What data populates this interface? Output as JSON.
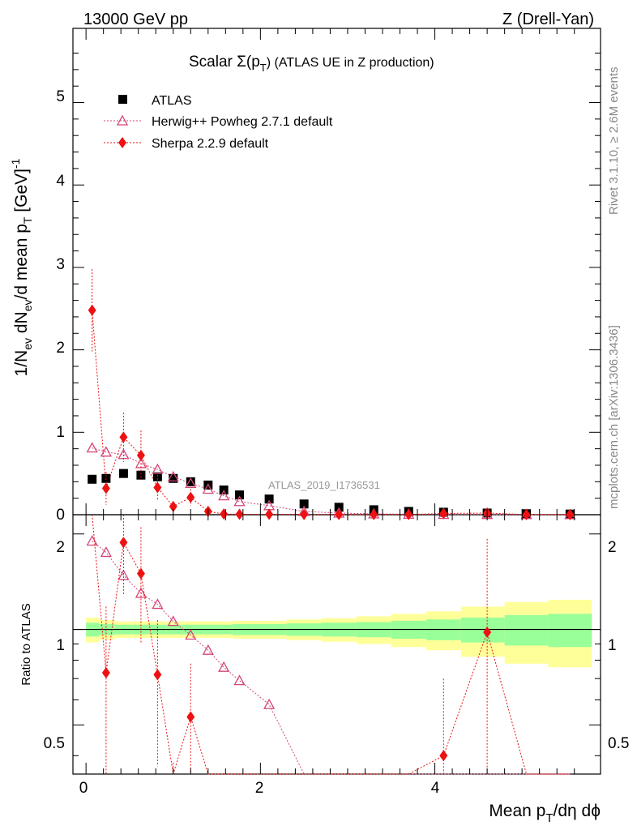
{
  "header": {
    "energy": "13000 GeV pp",
    "process": "Z (Drell-Yan)",
    "title_prefix": "Scalar Σ(p",
    "title_sub": "T",
    "title_suffix": ") (ATLAS UE in Z production)",
    "analysis_id": "ATLAS_2019_I1736531",
    "side_rivet": "Rivet 3.1.10, ≥ 2.6M events",
    "side_mcplots": "mcplots.cern.ch [arXiv:1306.3436]"
  },
  "axes": {
    "main_ylabel": "1/N_ev dN_ev/d mean p_T [GeV]^-1",
    "ratio_ylabel": "Ratio to ATLAS",
    "xlabel": "Mean p_T/dη dϕ",
    "main_yticks": [
      "0",
      "1",
      "2",
      "3",
      "4",
      "5"
    ],
    "ratio_yticks": [
      "0.5",
      "1",
      "2"
    ],
    "xticks": [
      "0",
      "2",
      "4"
    ]
  },
  "legend": [
    "ATLAS",
    "Herwig++ Powheg 2.7.1 default",
    "Sherpa 2.2.9 default"
  ],
  "colors": {
    "atlas": "#000000",
    "herwig": "#d4457a",
    "sherpa": "#ee1111",
    "band_inner": "#99ff99",
    "band_outer": "#ffff99"
  },
  "chart_data": {
    "type": "scatter",
    "x_range": [
      -0.15,
      5.9
    ],
    "main_ylim": [
      0,
      5.9
    ],
    "ratio_ylim": [
      0.35,
      2.3
    ],
    "ratio_log": true,
    "grid": false,
    "legend_placement": "top-left",
    "series": [
      {
        "name": "ATLAS",
        "x": [
          0.07,
          0.23,
          0.43,
          0.63,
          0.82,
          1.0,
          1.2,
          1.4,
          1.58,
          1.76,
          2.1,
          2.5,
          2.9,
          3.3,
          3.7,
          4.1,
          4.6,
          5.05,
          5.55
        ],
        "x_low": [
          0.0,
          0.15,
          0.33,
          0.53,
          0.72,
          0.92,
          1.1,
          1.3,
          1.5,
          1.68,
          1.9,
          2.3,
          2.7,
          3.1,
          3.5,
          3.9,
          4.3,
          4.8,
          5.3
        ],
        "x_high": [
          0.15,
          0.33,
          0.53,
          0.72,
          0.92,
          1.1,
          1.3,
          1.5,
          1.68,
          1.9,
          2.3,
          2.7,
          3.1,
          3.5,
          3.9,
          4.3,
          4.8,
          5.3,
          5.8
        ],
        "y": [
          0.43,
          0.44,
          0.5,
          0.48,
          0.46,
          0.44,
          0.4,
          0.36,
          0.3,
          0.24,
          0.19,
          0.13,
          0.09,
          0.06,
          0.04,
          0.03,
          0.02,
          0.012,
          0.008
        ]
      },
      {
        "name": "Herwig++ Powheg 2.7.1 default",
        "x": [
          0.07,
          0.23,
          0.43,
          0.63,
          0.82,
          1.0,
          1.2,
          1.4,
          1.58,
          1.76,
          2.1,
          2.5,
          2.9,
          3.3,
          3.7,
          4.1,
          4.6,
          5.05,
          5.55
        ],
        "y": [
          0.81,
          0.76,
          0.73,
          0.62,
          0.55,
          0.46,
          0.38,
          0.31,
          0.23,
          0.16,
          0.11,
          0.04,
          0.02,
          0.01,
          0.006,
          0.004,
          0.003,
          0.002,
          0.001
        ],
        "ratio": [
          1.9,
          1.75,
          1.48,
          1.3,
          1.2,
          1.06,
          0.96,
          0.86,
          0.76,
          0.69,
          0.58,
          0.3,
          0.22,
          0.17,
          0.15,
          0.13,
          0.15,
          0.16,
          0.13
        ]
      },
      {
        "name": "Sherpa 2.2.9 default",
        "x": [
          0.07,
          0.23,
          0.43,
          0.63,
          0.82,
          1.0,
          1.2,
          1.4,
          1.58,
          1.76,
          2.1,
          2.5,
          2.9,
          3.3,
          3.7,
          4.1,
          4.6,
          5.05,
          5.55
        ],
        "y": [
          2.48,
          0.32,
          0.94,
          0.72,
          0.33,
          0.1,
          0.21,
          0.04,
          0.008,
          0.005,
          0.005,
          0.003,
          0.003,
          0.002,
          0.002,
          0.015,
          0.02,
          0.001,
          0.001
        ],
        "y_err": [
          0.5,
          0.2,
          0.3,
          0.3,
          0.15,
          0.06,
          0.1,
          0.03,
          0.005,
          0.004,
          0.004,
          0.003,
          0.003,
          0.002,
          0.002,
          0.01,
          0.015,
          0.001,
          0.001
        ],
        "ratio": [
          5.7,
          0.73,
          1.88,
          1.5,
          0.72,
          0.23,
          0.53,
          0.11,
          0.03,
          0.02,
          0.026,
          0.023,
          0.033,
          0.033,
          0.05,
          0.4,
          0.98,
          0.08,
          0.12
        ],
        "ratio_err": [
          1.5,
          0.45,
          0.6,
          0.6,
          0.35,
          0.15,
          0.25,
          0.08,
          0.02,
          0.02,
          0.02,
          0.02,
          0.02,
          0.02,
          0.03,
          0.3,
          0.95,
          0.06,
          0.08
        ]
      }
    ],
    "ratio_band_inner": [
      0.05,
      0.04,
      0.035,
      0.035,
      0.035,
      0.035,
      0.035,
      0.035,
      0.035,
      0.04,
      0.04,
      0.045,
      0.05,
      0.055,
      0.065,
      0.075,
      0.09,
      0.11,
      0.12
    ],
    "ratio_band_outer": [
      0.09,
      0.07,
      0.06,
      0.06,
      0.06,
      0.06,
      0.06,
      0.06,
      0.06,
      0.065,
      0.065,
      0.075,
      0.085,
      0.1,
      0.12,
      0.14,
      0.18,
      0.22,
      0.24
    ]
  }
}
